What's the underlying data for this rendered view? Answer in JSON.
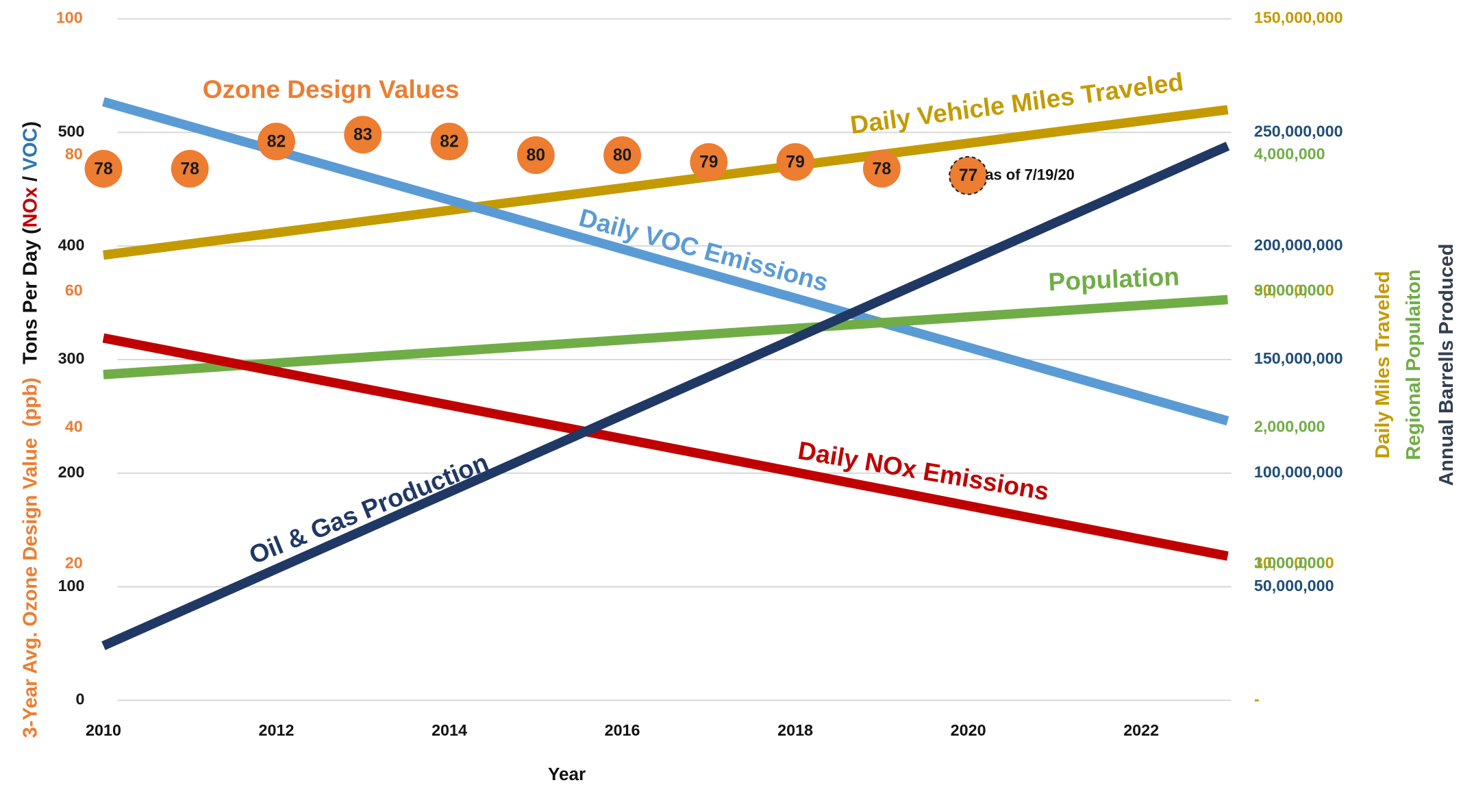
{
  "chart_data": {
    "type": "line",
    "x_label": "Year",
    "xlim": [
      2010,
      2023
    ],
    "xticks": [
      2010,
      2012,
      2014,
      2016,
      2018,
      2020,
      2022
    ],
    "grid": true,
    "y_axes": [
      {
        "id": "ozone",
        "side": "left",
        "color": "#ed7d31",
        "lim": [
          0,
          100
        ],
        "ticks": [
          20,
          40,
          60,
          80,
          100
        ]
      },
      {
        "id": "tons",
        "side": "left",
        "color": "#1a1a1a",
        "lim": [
          0,
          600
        ],
        "ticks": [
          0,
          100,
          200,
          300,
          400,
          500
        ]
      },
      {
        "id": "vmt",
        "side": "right",
        "color": "#c49a00",
        "lim": [
          0,
          150000000
        ],
        "ticks": [
          {
            "value": 0,
            "label": "-"
          },
          {
            "value": 30000000,
            "label": "30,000,000"
          },
          {
            "value": 90000000,
            "label": "90,000,000"
          },
          {
            "value": 150000000,
            "label": "150,000,000"
          }
        ]
      },
      {
        "id": "pop",
        "side": "right",
        "color": "#70ad47",
        "lim": [
          0,
          5000000
        ],
        "ticks": [
          {
            "value": 1000000,
            "label": "1,000,000"
          },
          {
            "value": 2000000,
            "label": "2,000,000"
          },
          {
            "value": 3000000,
            "label": "3,000,000"
          },
          {
            "value": 4000000,
            "label": "4,000,000"
          }
        ]
      },
      {
        "id": "barrels",
        "side": "right",
        "color": "#1f4e79",
        "lim": [
          0,
          300000000
        ],
        "ticks": [
          {
            "value": 50000000,
            "label": "50,000,000"
          },
          {
            "value": 100000000,
            "label": "100,000,000"
          },
          {
            "value": 150000000,
            "label": "150,000,000"
          },
          {
            "value": 200000000,
            "label": "200,000,000"
          },
          {
            "value": 250000000,
            "label": "250,000,000"
          }
        ]
      }
    ],
    "left_label": [
      {
        "text": "3-Year Avg. Ozone Design Value  (ppb)",
        "color": "#ed7d31"
      },
      {
        "text": "Tons Per Day (",
        "color": "#111111"
      },
      {
        "text": "NOx",
        "color": "#c00000"
      },
      {
        "text": " / ",
        "color": "#111111"
      },
      {
        "text": "VOC",
        "color": "#2e75b6"
      },
      {
        "text": ")",
        "color": "#111111"
      }
    ],
    "right_labels": [
      {
        "text": "Daily Miles Traveled",
        "color": "#c49a00"
      },
      {
        "text": "Regional Populaiton",
        "color": "#70ad47"
      },
      {
        "text": "Annual Barrells Produced",
        "color": "#333f50"
      }
    ],
    "series": [
      {
        "name": "Daily Vehicle Miles Traveled",
        "color": "#c49a00",
        "axis": "vmt",
        "x": [
          2010,
          2023
        ],
        "values": [
          98000000,
          130000000
        ]
      },
      {
        "name": "Daily VOC Emissions",
        "color": "#5b9bd5",
        "axis": "tons",
        "x": [
          2010,
          2023
        ],
        "values": [
          527,
          246
        ]
      },
      {
        "name": "Population",
        "color": "#70ad47",
        "axis": "pop",
        "x": [
          2010,
          2023
        ],
        "values": [
          2390000,
          2940000
        ]
      },
      {
        "name": "Daily NOx Emissions",
        "color": "#c00000",
        "axis": "tons",
        "x": [
          2010,
          2023
        ],
        "values": [
          319,
          127
        ]
      },
      {
        "name": "Oil & Gas Production",
        "color": "#203864",
        "axis": "barrels",
        "x": [
          2010,
          2023
        ],
        "values": [
          24000000,
          244000000
        ]
      },
      {
        "name": "Ozone Design Values",
        "type": "scatter",
        "color": "#ed7d31",
        "axis": "ozone",
        "x": [
          2010,
          2011,
          2012,
          2013,
          2014,
          2015,
          2016,
          2017,
          2018,
          2019,
          2020
        ],
        "values": [
          78,
          78,
          82,
          83,
          82,
          80,
          80,
          79,
          79,
          78,
          77
        ]
      }
    ],
    "annotations": [
      "as of 7/19/20"
    ]
  }
}
